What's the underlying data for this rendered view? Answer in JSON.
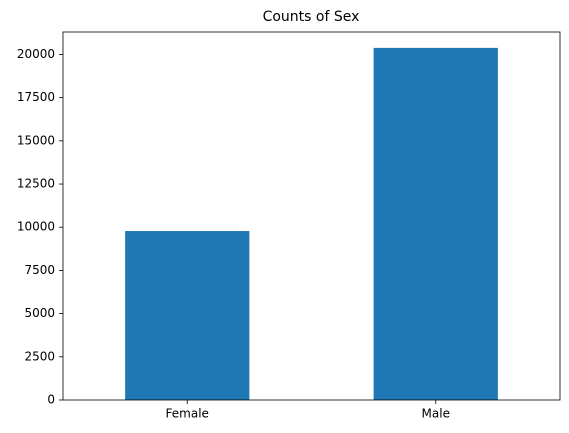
{
  "chart_data": {
    "type": "bar",
    "title": "Counts of Sex",
    "categories": [
      "Female",
      "Male"
    ],
    "values": [
      9780,
      20380
    ],
    "color": "#1f77b4",
    "ylim": [
      0,
      21300
    ],
    "yticks": [
      0,
      2500,
      5000,
      7500,
      10000,
      12500,
      15000,
      17500,
      20000
    ],
    "grid": false
  }
}
